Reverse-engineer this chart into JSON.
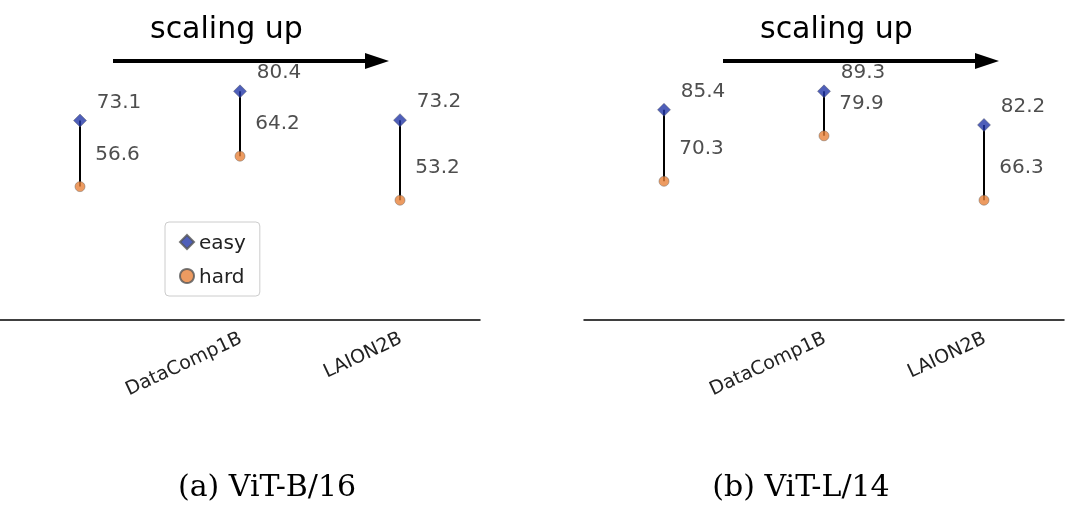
{
  "chart_data": [
    {
      "type": "scatter",
      "title": "(a) ViT-B/16",
      "annotations": [
        "scaling up"
      ],
      "categories": [
        null,
        "DataComp1B",
        "LAION2B"
      ],
      "tick_labels": "x",
      "legend": "bottom",
      "data_labels": true,
      "series": [
        {
          "name": "easy",
          "color": "#2337a8",
          "marker": "diamond",
          "values": [
            73.1,
            80.4,
            73.2
          ]
        },
        {
          "name": "hard",
          "color": "#e8823a",
          "marker": "circle",
          "values": [
            56.6,
            64.2,
            53.2
          ]
        }
      ]
    },
    {
      "type": "scatter",
      "title": "(b) ViT-L/14",
      "annotations": [
        "scaling up"
      ],
      "categories": [
        null,
        "DataComp1B",
        "LAION2B"
      ],
      "tick_labels": "x",
      "legend": false,
      "data_labels": true,
      "series": [
        {
          "color": "#2337a8",
          "marker": "diamond",
          "values": [
            85.4,
            89.3,
            82.2
          ]
        },
        {
          "color": "#e8823a",
          "marker": "circle",
          "values": [
            70.3,
            79.9,
            66.3
          ]
        }
      ]
    }
  ]
}
